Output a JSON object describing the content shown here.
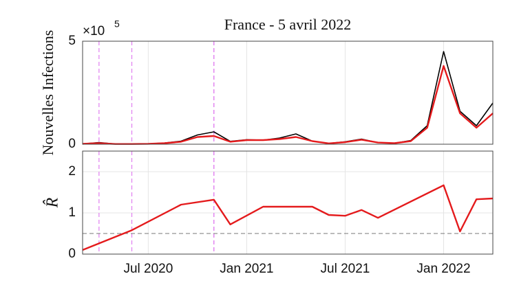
{
  "chart_data": [
    {
      "type": "line",
      "title": "France - 5 avril 2022",
      "ylabel": "Nouvelles Infections",
      "y_multiplier": {
        "base": "×10",
        "exponent": "5"
      },
      "x": [
        "2020-03",
        "2020-04",
        "2020-05",
        "2020-06",
        "2020-07",
        "2020-08",
        "2020-09",
        "2020-10",
        "2020-11",
        "2020-12",
        "2021-01",
        "2021-02",
        "2021-03",
        "2021-04",
        "2021-05",
        "2021-06",
        "2021-07",
        "2021-08",
        "2021-09",
        "2021-10",
        "2021-11",
        "2021-12",
        "2022-01",
        "2022-02",
        "2022-03",
        "2022-04"
      ],
      "series": [
        {
          "color": "#000000",
          "values": [
            0.02,
            0.08,
            0.01,
            0.01,
            0.02,
            0.06,
            0.15,
            0.45,
            0.6,
            0.14,
            0.22,
            0.2,
            0.3,
            0.5,
            0.15,
            0.04,
            0.12,
            0.25,
            0.08,
            0.05,
            0.18,
            0.9,
            4.5,
            1.6,
            0.9,
            2.0
          ]
        },
        {
          "color": "#e41a1c",
          "values": [
            0.02,
            0.05,
            0.01,
            0.01,
            0.02,
            0.05,
            0.12,
            0.35,
            0.4,
            0.12,
            0.2,
            0.2,
            0.25,
            0.35,
            0.15,
            0.04,
            0.1,
            0.22,
            0.08,
            0.05,
            0.15,
            0.8,
            3.8,
            1.5,
            0.8,
            1.5
          ]
        }
      ],
      "events": [
        "2020-04",
        "2020-06",
        "2020-11",
        "2020-11"
      ],
      "event_color": "#e07ef0",
      "xlim": [
        "2020-03",
        "2022-04"
      ],
      "ylim": [
        0,
        5
      ],
      "yticks": [
        0,
        5
      ],
      "grid": true
    },
    {
      "type": "line",
      "ylabel": "R̂",
      "color": "#e41a1c",
      "x": [
        "2020-03",
        "2020-06",
        "2020-09",
        "2020-11",
        "2020-12",
        "2021-02",
        "2021-05",
        "2021-06",
        "2021-07",
        "2021-08",
        "2021-09",
        "2022-01",
        "2022-02",
        "2022-03",
        "2022-04"
      ],
      "values": [
        0.1,
        0.58,
        1.2,
        1.32,
        0.72,
        1.15,
        1.15,
        0.95,
        0.93,
        1.07,
        0.88,
        1.67,
        0.55,
        1.33,
        1.35
      ],
      "reference_line": 0.5,
      "xlim": [
        "2020-03",
        "2022-04"
      ],
      "ylim": [
        0,
        2.5
      ],
      "yticks": [
        0,
        1,
        2
      ],
      "xticks": [
        {
          "value": "2020-07",
          "label": "Jul 2020"
        },
        {
          "value": "2021-01",
          "label": "Jan 2021"
        },
        {
          "value": "2021-07",
          "label": "Jul 2021"
        },
        {
          "value": "2022-01",
          "label": "Jan 2022"
        }
      ],
      "grid": true
    }
  ]
}
